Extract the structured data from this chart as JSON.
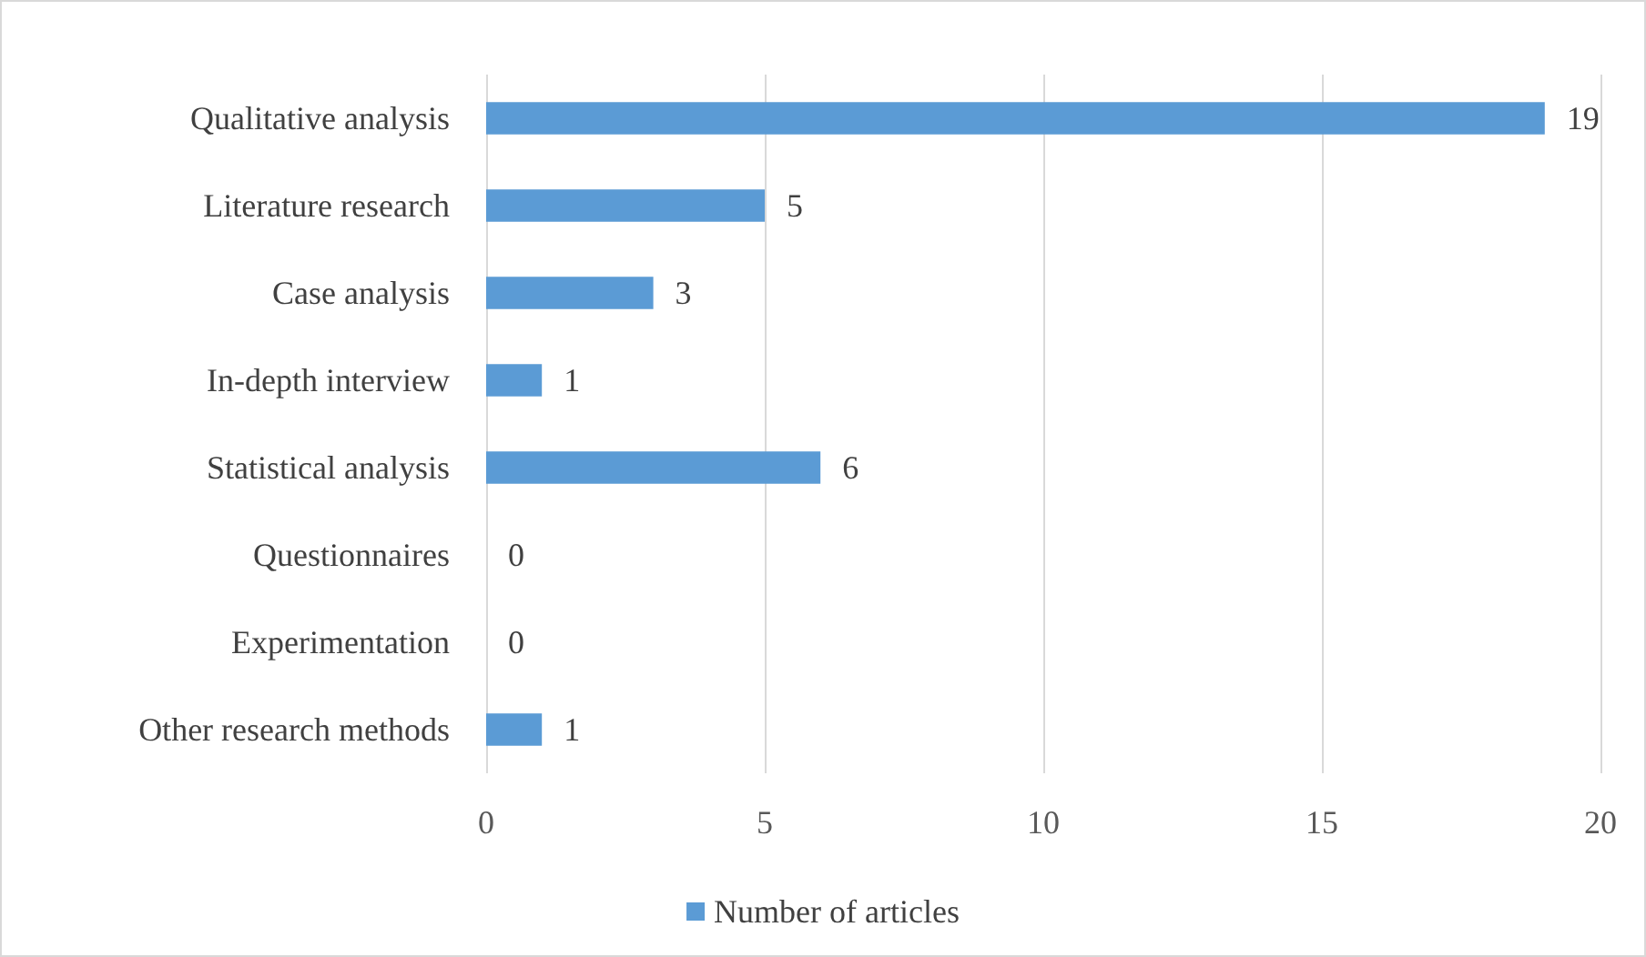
{
  "chart_data": {
    "type": "bar",
    "orientation": "horizontal",
    "categories": [
      "Qualitative analysis",
      "Literature research",
      "Case analysis",
      "In-depth interview",
      "Statistical analysis",
      "Questionnaires",
      "Experimentation",
      "Other research methods"
    ],
    "series": [
      {
        "name": "Number of articles",
        "color": "#5b9bd5",
        "values": [
          19,
          5,
          3,
          1,
          6,
          0,
          0,
          1
        ]
      }
    ],
    "xlim": [
      0,
      20
    ],
    "xticks": [
      0,
      5,
      10,
      15,
      20
    ],
    "grid": "x",
    "legend": "bottom",
    "data_labels": true
  }
}
